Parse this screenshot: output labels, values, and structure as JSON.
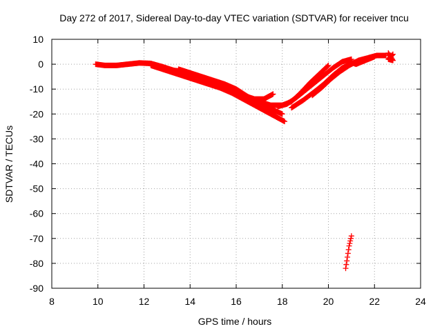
{
  "chart_data": {
    "type": "scatter",
    "title": "Day 272 of 2017, Sidereal Day-to-day VTEC variation (SDTVAR) for receiver tncu",
    "xlabel": "GPS time / hours",
    "ylabel": "SDTVAR / TECUs",
    "xlim": [
      8,
      24
    ],
    "ylim": [
      -90,
      10
    ],
    "xticks": [
      8,
      10,
      12,
      14,
      16,
      18,
      20,
      22,
      24
    ],
    "yticks": [
      10,
      0,
      -10,
      -20,
      -30,
      -40,
      -50,
      -60,
      -70,
      -80,
      -90
    ],
    "grid": true,
    "marker": "plus",
    "color": "#ff0000",
    "series": [
      {
        "name": "track-1",
        "x": [
          9.9,
          10.3,
          10.8,
          11.3,
          11.8,
          12.3,
          12.8,
          13.3,
          13.8,
          14.3,
          14.8,
          15.3,
          15.8,
          16.3,
          16.8,
          17.2,
          17.6
        ],
        "y": [
          0,
          -0.5,
          -0.5,
          0,
          0.5,
          0.3,
          -1,
          -2.5,
          -3,
          -4.5,
          -6,
          -8,
          -10,
          -12.5,
          -14,
          -14,
          -12
        ]
      },
      {
        "name": "track-2",
        "x": [
          12.3,
          12.8,
          13.3,
          13.8,
          14.3,
          14.8,
          15.3,
          15.8,
          16.3,
          16.8,
          17.3,
          17.7,
          18.1
        ],
        "y": [
          -0.5,
          -2,
          -3.5,
          -5,
          -6.5,
          -8,
          -9.5,
          -11.5,
          -14,
          -16.5,
          -19,
          -21,
          -23
        ]
      },
      {
        "name": "track-3",
        "x": [
          13.5,
          14,
          14.5,
          15,
          15.5,
          16,
          16.5,
          17,
          17.5,
          18
        ],
        "y": [
          -2,
          -3.5,
          -5,
          -6.5,
          -8,
          -10,
          -13,
          -15.5,
          -18,
          -20
        ]
      },
      {
        "name": "track-4",
        "x": [
          17,
          17.5,
          18,
          18.4,
          18.8,
          19.2,
          19.6,
          20
        ],
        "y": [
          -15,
          -16.5,
          -16.5,
          -15,
          -11.5,
          -7.5,
          -4,
          -0.5
        ]
      },
      {
        "name": "track-5",
        "x": [
          17.8,
          18.2,
          18.6,
          19,
          19.4,
          19.8,
          20.2,
          20.6,
          21
        ],
        "y": [
          -17,
          -16,
          -13.5,
          -10.5,
          -7.5,
          -4.5,
          -1.5,
          1,
          2
        ]
      },
      {
        "name": "track-6",
        "x": [
          18.4,
          18.9,
          19.4,
          19.8,
          20.2,
          20.6,
          21.2
        ],
        "y": [
          -17.5,
          -14.5,
          -11,
          -8,
          -4.5,
          -1.5,
          1
        ]
      },
      {
        "name": "track-7",
        "x": [
          19.3,
          19.7,
          20.1,
          20.5,
          20.9,
          21.3,
          21.7,
          22.1,
          22.5
        ],
        "y": [
          -12.5,
          -9.5,
          -6,
          -3,
          -0.5,
          1.5,
          2.5,
          3.5,
          3.5
        ]
      },
      {
        "name": "track-8",
        "x": [
          20.9,
          21.2,
          21.6,
          22
        ],
        "y": [
          1,
          0,
          1.5,
          3
        ]
      },
      {
        "name": "track-9",
        "x": [
          22.6,
          22.7,
          22.8,
          22.6,
          22.8
        ],
        "y": [
          4.5,
          3,
          1.5,
          2,
          4
        ]
      },
      {
        "name": "track-10",
        "x": [
          20.75,
          20.8,
          20.85,
          20.9,
          20.95,
          21
        ],
        "y": [
          -82,
          -79,
          -76,
          -73,
          -71,
          -69
        ]
      }
    ]
  }
}
